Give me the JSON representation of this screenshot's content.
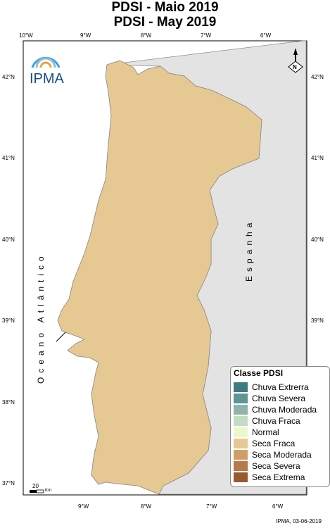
{
  "title_pt": "PDSI - Maio 2019",
  "title_en": "PDSI - May 2019",
  "lon_ticks": [
    "10°W",
    "9°W",
    "8°W",
    "7°W",
    "6°W"
  ],
  "lat_ticks": [
    "42°N",
    "41°N",
    "40°N",
    "39°N",
    "38°N",
    "37°N"
  ],
  "ocean_label": "Oceano Atlântico",
  "spain_label": "Espanha",
  "logo_text": "IPMA",
  "north_label": "N",
  "scale": {
    "value": "20",
    "unit": "Km"
  },
  "credit": "IPMA, 03-06-2019",
  "legend": {
    "title": "Classe PDSI",
    "items": [
      {
        "label": "Chuva Extrerra",
        "color": "#3f7a80"
      },
      {
        "label": "Chuva Severa",
        "color": "#5f9594"
      },
      {
        "label": "Chuva Moderada",
        "color": "#8fb5a9"
      },
      {
        "label": "Chuva Fraca",
        "color": "#c3dcc4"
      },
      {
        "label": "Normal",
        "color": "#eef6cc"
      },
      {
        "label": "Seca Fraca",
        "color": "#e6c992"
      },
      {
        "label": "Seca Moderada",
        "color": "#cf9f67"
      },
      {
        "label": "Seca Severa",
        "color": "#b5794a"
      },
      {
        "label": "Seca Extrema",
        "color": "#9a5830"
      }
    ]
  },
  "colors": {
    "sea": "#ffffff",
    "spain": "#e3e3e3",
    "border": "#8c8c8c",
    "frame": "#000000"
  }
}
